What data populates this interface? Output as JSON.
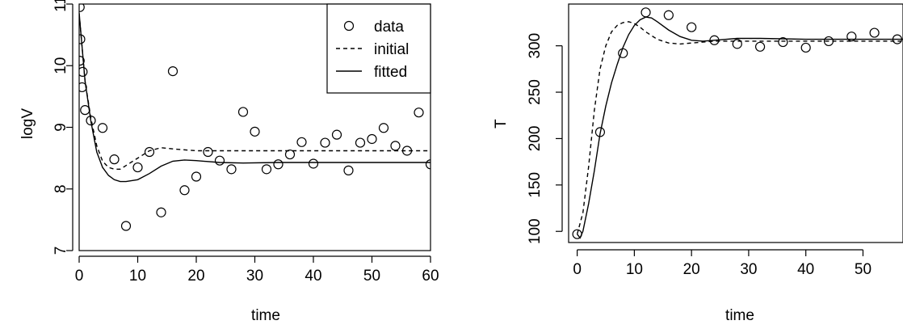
{
  "chart_data": [
    {
      "type": "scatter",
      "title": "",
      "xlabel": "time",
      "ylabel": "logV",
      "xlim": [
        0,
        60
      ],
      "ylim": [
        7,
        11
      ],
      "xticks": [
        "0",
        "10",
        "20",
        "30",
        "40",
        "50",
        "60"
      ],
      "yticks": [
        "7",
        "8",
        "9",
        "10",
        "11"
      ],
      "grid": false,
      "legend": {
        "placement": "top-right",
        "entries": [
          {
            "label": "data",
            "style": "circle"
          },
          {
            "label": "initial",
            "style": "dashed"
          },
          {
            "label": "fitted",
            "style": "solid"
          }
        ]
      },
      "series": [
        {
          "name": "data",
          "style": "circle",
          "x": [
            0.1,
            0.1,
            0.2,
            0.5,
            0.6,
            1,
            2,
            4,
            6,
            8,
            10,
            12,
            14,
            16,
            18,
            20,
            22,
            24,
            26,
            28,
            30,
            32,
            34,
            36,
            38,
            40,
            42,
            44,
            46,
            48,
            50,
            52,
            54,
            56,
            58,
            60
          ],
          "y": [
            10.95,
            10.08,
            10.43,
            9.65,
            9.9,
            9.28,
            9.11,
            8.99,
            8.48,
            7.4,
            8.35,
            8.6,
            7.62,
            9.91,
            7.98,
            8.2,
            8.6,
            8.46,
            8.32,
            9.25,
            8.93,
            8.32,
            8.4,
            8.56,
            8.76,
            8.41,
            8.75,
            8.88,
            8.3,
            8.75,
            8.81,
            8.99,
            8.7,
            8.62,
            9.24,
            8.4
          ]
        },
        {
          "name": "initial",
          "style": "dashed",
          "x": [
            0,
            1,
            2,
            3,
            4,
            5,
            6,
            7,
            8,
            10,
            12,
            14,
            16,
            20,
            30,
            60
          ],
          "y": [
            10.85,
            9.75,
            9.15,
            8.7,
            8.45,
            8.35,
            8.32,
            8.32,
            8.38,
            8.5,
            8.62,
            8.67,
            8.65,
            8.62,
            8.62,
            8.62
          ]
        },
        {
          "name": "fitted",
          "style": "solid",
          "x": [
            0,
            1,
            2,
            3,
            4,
            5,
            6,
            7,
            8,
            10,
            12,
            14,
            16,
            18,
            20,
            24,
            28,
            34,
            40,
            60
          ],
          "y": [
            10.85,
            9.75,
            9.1,
            8.6,
            8.35,
            8.22,
            8.15,
            8.12,
            8.12,
            8.15,
            8.25,
            8.37,
            8.45,
            8.47,
            8.46,
            8.43,
            8.42,
            8.43,
            8.43,
            8.43
          ]
        }
      ]
    },
    {
      "type": "scatter",
      "title": "",
      "xlabel": "time",
      "ylabel": "T",
      "xlim": [
        0,
        57
      ],
      "ylim": [
        95,
        335
      ],
      "xticks": [
        "0",
        "10",
        "20",
        "30",
        "40",
        "50"
      ],
      "yticks": [
        "100",
        "150",
        "200",
        "250",
        "300"
      ],
      "grid": false,
      "series": [
        {
          "name": "data",
          "style": "circle",
          "x": [
            0,
            4,
            8,
            12,
            16,
            20,
            24,
            28,
            32,
            36,
            40,
            44,
            48,
            52,
            56
          ],
          "y": [
            97,
            207,
            292,
            336,
            333,
            320,
            306,
            302,
            299,
            304,
            298,
            305,
            310,
            314,
            307
          ]
        },
        {
          "name": "initial",
          "style": "dashed",
          "x": [
            0,
            1,
            2,
            3,
            4,
            5,
            6,
            7,
            8,
            9,
            10,
            11,
            12,
            14,
            16,
            18,
            20,
            24,
            30,
            40,
            57
          ],
          "y": [
            97,
            120,
            170,
            230,
            275,
            300,
            315,
            322,
            325,
            326,
            324,
            320,
            315,
            307,
            303,
            302,
            303,
            305,
            305,
            305,
            305
          ]
        },
        {
          "name": "fitted",
          "style": "solid",
          "x": [
            0,
            0.5,
            1,
            2,
            3,
            4,
            5,
            6,
            7,
            8,
            9,
            10,
            11,
            12,
            13,
            14,
            16,
            18,
            20,
            22,
            24,
            28,
            32,
            40,
            57
          ],
          "y": [
            97,
            93,
            100,
            130,
            165,
            205,
            235,
            260,
            280,
            298,
            312,
            322,
            328,
            331,
            330,
            326,
            317,
            310,
            306,
            305,
            306,
            308,
            308,
            307,
            307
          ]
        }
      ]
    }
  ]
}
